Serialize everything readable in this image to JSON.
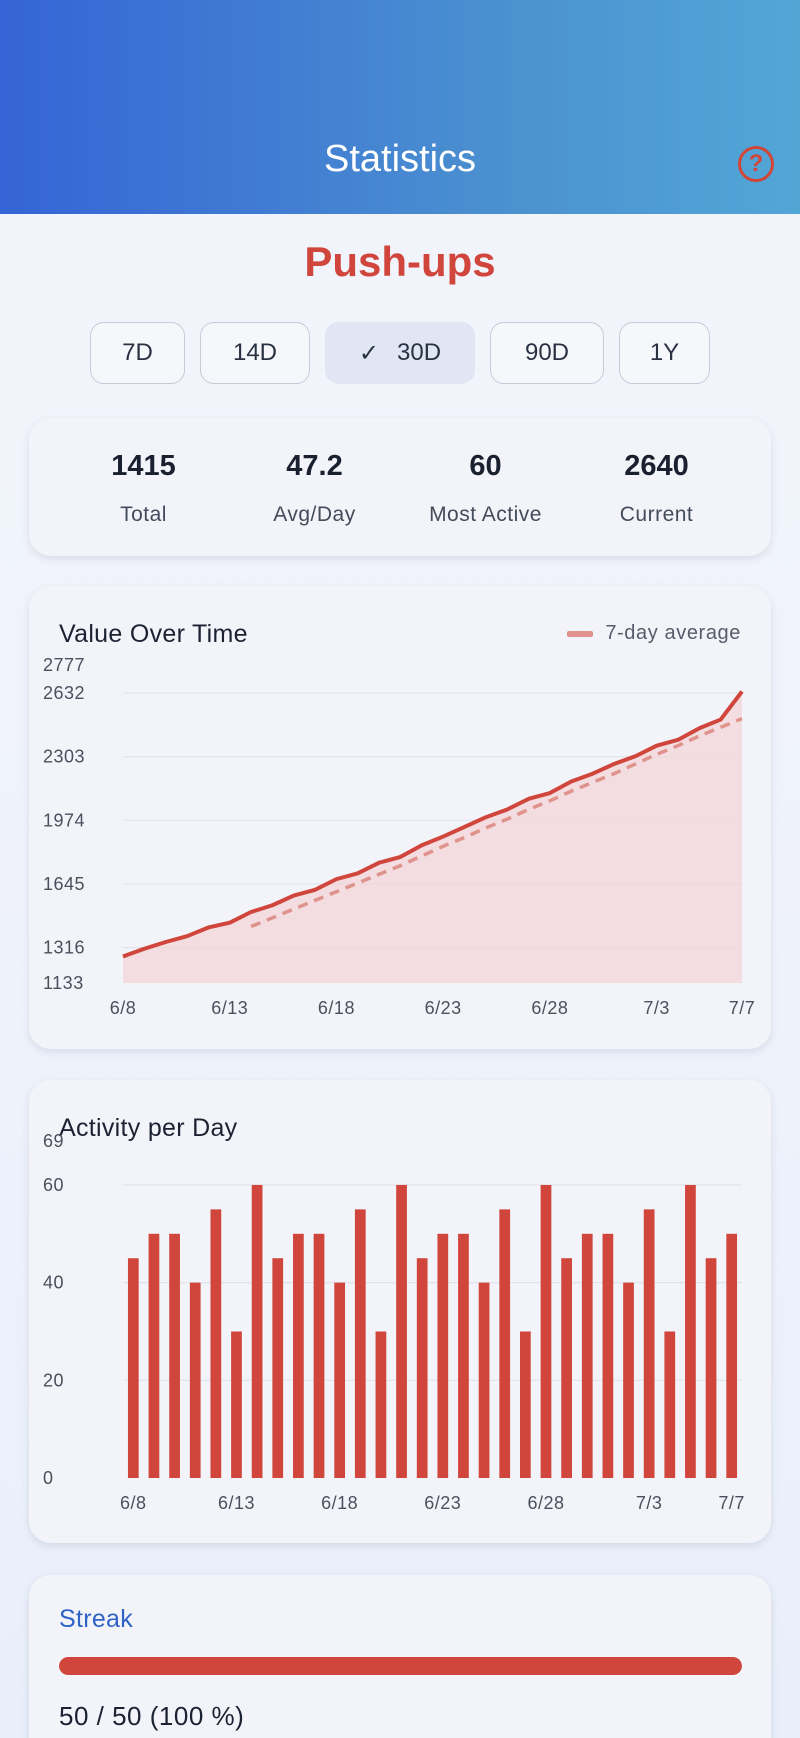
{
  "header": {
    "title": "Statistics",
    "help_icon": "help-circle-icon",
    "help_glyph": "?"
  },
  "exercise": {
    "name": "Push-ups"
  },
  "ranges": {
    "options": [
      "7D",
      "14D",
      "30D",
      "90D",
      "1Y"
    ],
    "selected": "30D",
    "check_glyph": "✓"
  },
  "summary": {
    "total": {
      "value": "1415",
      "label": "Total"
    },
    "avg": {
      "value": "47.2",
      "label": "Avg/Day"
    },
    "most_active": {
      "value": "60",
      "label": "Most Active"
    },
    "current": {
      "value": "2640",
      "label": "Current"
    }
  },
  "value_chart": {
    "title": "Value Over Time",
    "legend": "7-day average"
  },
  "activity_chart": {
    "title": "Activity per Day"
  },
  "streak": {
    "title": "Streak",
    "text": "50 / 50  (100 %)",
    "progress": 1.0
  },
  "colors": {
    "accent": "#d0463c",
    "avg_line": "#e0938c",
    "area_fill": "#f3d6d8",
    "header_start": "#3564d6",
    "header_end": "#52a6d6",
    "link": "#2f63c5"
  },
  "chart_data": [
    {
      "type": "area",
      "title": "Value Over Time",
      "x": [
        "6/8",
        "6/9",
        "6/10",
        "6/11",
        "6/12",
        "6/13",
        "6/14",
        "6/15",
        "6/16",
        "6/17",
        "6/18",
        "6/19",
        "6/20",
        "6/21",
        "6/22",
        "6/23",
        "6/24",
        "6/25",
        "6/26",
        "6/27",
        "6/28",
        "6/29",
        "6/30",
        "7/1",
        "7/2",
        "7/3",
        "7/4",
        "7/5",
        "7/6",
        "7/7"
      ],
      "series": [
        {
          "values": [
            1270,
            1310,
            1345,
            1375,
            1420,
            1445,
            1500,
            1535,
            1585,
            1615,
            1670,
            1700,
            1755,
            1785,
            1845,
            1890,
            1940,
            1990,
            2030,
            2085,
            2115,
            2175,
            2215,
            2265,
            2305,
            2360,
            2390,
            2450,
            2495,
            2640
          ]
        },
        {
          "name": "7-day average",
          "values": [
            null,
            null,
            null,
            null,
            null,
            null,
            1425,
            1470,
            1515,
            1560,
            1605,
            1650,
            1695,
            1740,
            1790,
            1840,
            1885,
            1935,
            1980,
            2030,
            2075,
            2125,
            2170,
            2215,
            2265,
            2315,
            2360,
            2410,
            2455,
            2500
          ]
        }
      ],
      "y_ticks": [
        1133,
        1316,
        1645,
        1974,
        2303,
        2632,
        2777
      ],
      "x_ticks": [
        "6/8",
        "6/13",
        "6/18",
        "6/23",
        "6/28",
        "7/3",
        "7/7"
      ],
      "ylim": [
        1133,
        2777
      ],
      "legend": "top-right",
      "grid": true
    },
    {
      "type": "bar",
      "title": "Activity per Day",
      "categories": [
        "6/8",
        "6/9",
        "6/10",
        "6/11",
        "6/12",
        "6/13",
        "6/14",
        "6/15",
        "6/16",
        "6/17",
        "6/18",
        "6/19",
        "6/20",
        "6/21",
        "6/22",
        "6/23",
        "6/24",
        "6/25",
        "6/26",
        "6/27",
        "6/28",
        "6/29",
        "6/30",
        "7/1",
        "7/2",
        "7/3",
        "7/4",
        "7/5",
        "7/6",
        "7/7"
      ],
      "values": [
        45,
        50,
        50,
        40,
        55,
        30,
        60,
        45,
        50,
        50,
        40,
        55,
        30,
        60,
        45,
        50,
        50,
        40,
        55,
        30,
        60,
        45,
        50,
        50,
        40,
        55,
        30,
        60,
        45,
        50
      ],
      "y_ticks": [
        0,
        20,
        40,
        60,
        69
      ],
      "x_ticks": [
        "6/8",
        "6/13",
        "6/18",
        "6/23",
        "6/28",
        "7/3",
        "7/7"
      ],
      "ylim": [
        0,
        69
      ],
      "grid": true
    }
  ]
}
